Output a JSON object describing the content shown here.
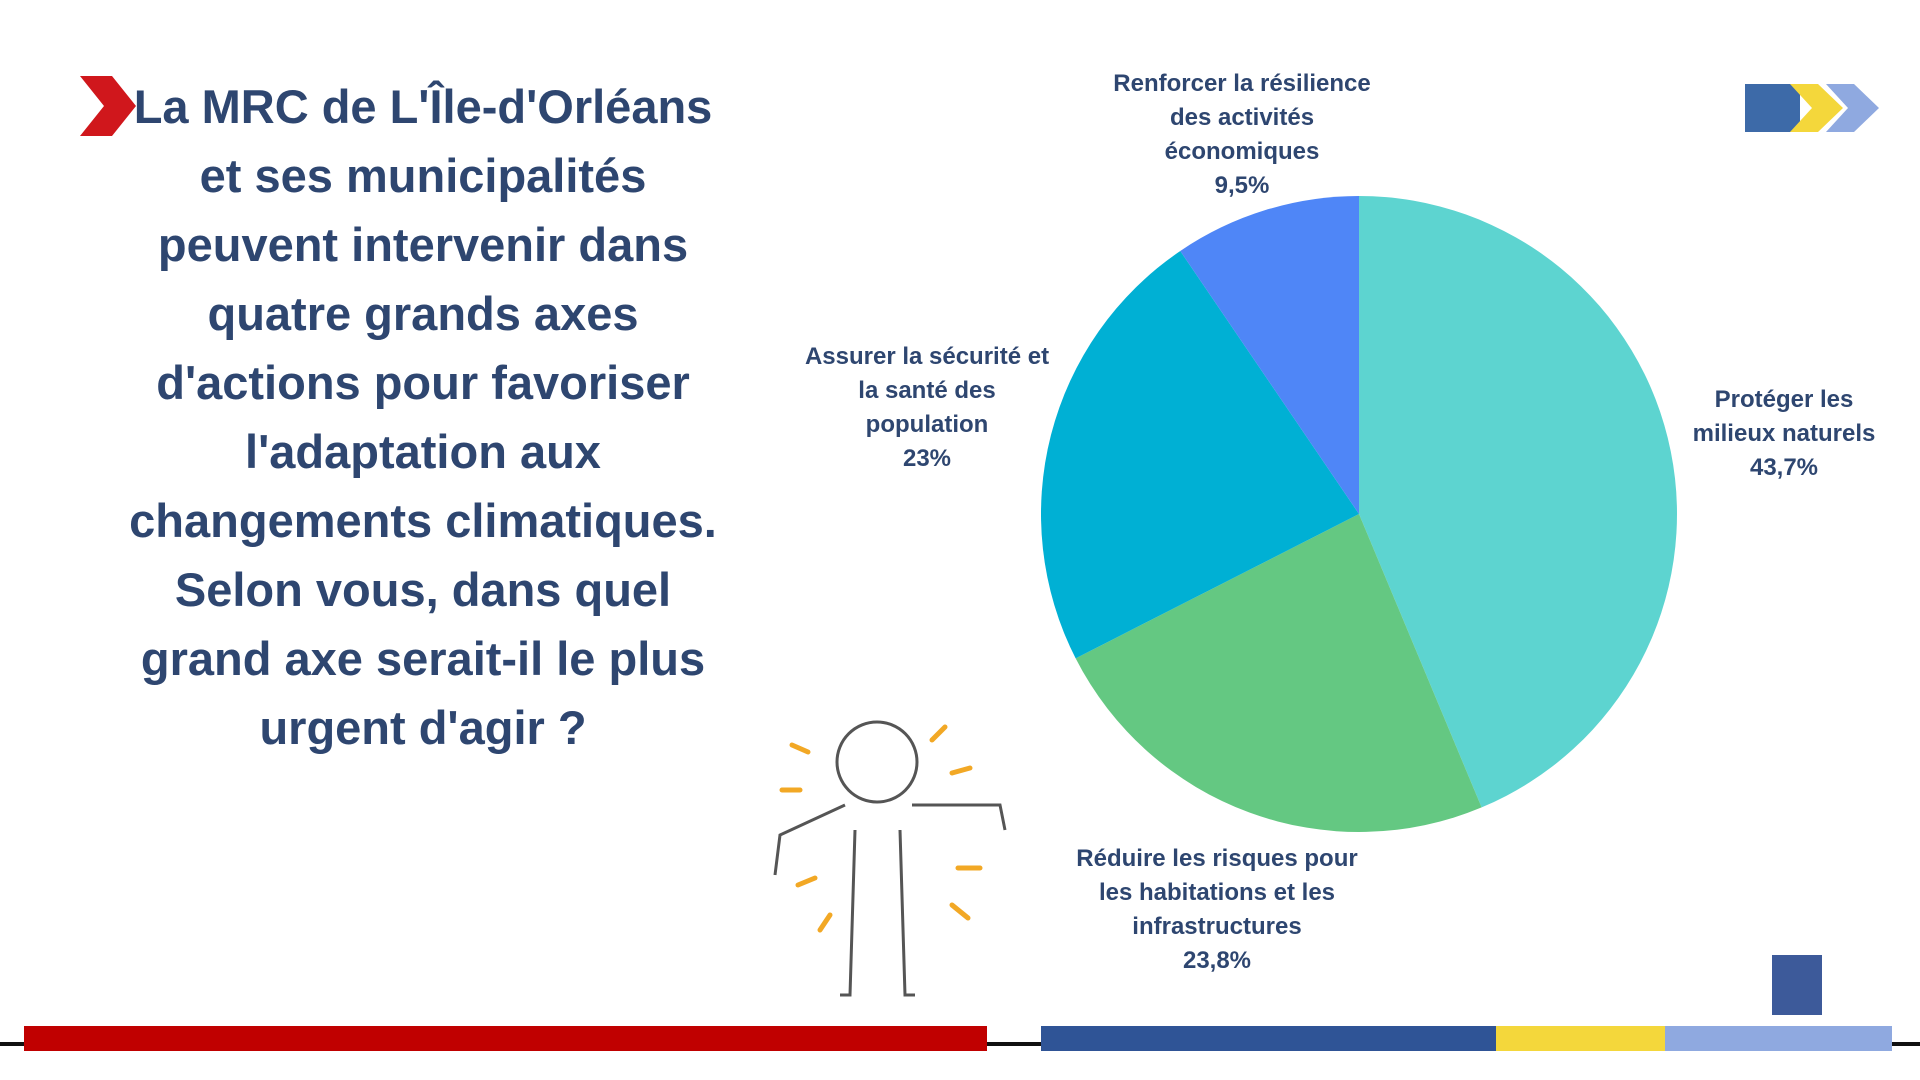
{
  "chart_data": {
    "type": "pie",
    "title": "La MRC de L'Île-d'Orléans et ses municipalités peuvent intervenir dans quatre grands axes d'actions pour favoriser l'adaptation aux changements climatiques. Selon vous, dans quel grand axe serait-il le plus urgent d'agir ?",
    "categories": [
      "Protéger les milieux naturels",
      "Réduire les risques pour les habitations et les infrastructures",
      "Assurer la sécurité et la santé des population",
      "Renforcer la résilience des activités économiques"
    ],
    "values": [
      43.7,
      23.8,
      23,
      9.5
    ],
    "value_labels": [
      "43,7%",
      "23,8%",
      "23%",
      "9,5%"
    ],
    "colors": [
      "#5dd4d0",
      "#64c882",
      "#00b0d4",
      "#4f86f7"
    ]
  }
}
